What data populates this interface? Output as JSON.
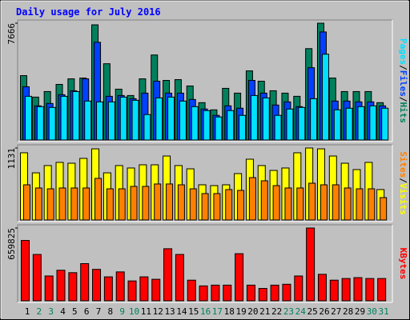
{
  "chart_data": [
    {
      "type": "bar",
      "title": "Daily usage for July 2016",
      "separator": "/",
      "ylim": [
        0,
        7666
      ],
      "yticks": [
        7666
      ],
      "series": [
        {
          "name": "Hits",
          "color": "#00805c",
          "values": [
            4225,
            2816,
            3180,
            3650,
            4015,
            4067,
            7560,
            5006,
            3337,
            2920,
            4015,
            5580,
            3911,
            3963,
            3546,
            2450,
            1980,
            3390,
            3076,
            4537,
            3859,
            3233,
            3076,
            2868,
            5997,
            7666,
            4067,
            3180,
            3180,
            3180,
            2450
          ]
        },
        {
          "name": "Files",
          "color": "#0040ff",
          "values": [
            3494,
            2242,
            2399,
            2972,
            3233,
            4015,
            6414,
            2868,
            2920,
            2712,
            3076,
            3859,
            3076,
            3076,
            2660,
            2034,
            1617,
            2242,
            2086,
            3911,
            3076,
            2295,
            2503,
            2190,
            4745,
            7092,
            2555,
            2555,
            2503,
            2503,
            2242
          ]
        },
        {
          "name": "Pages",
          "color": "#00e0ff",
          "values": [
            2868,
            2190,
            2138,
            2868,
            3181,
            2555,
            2503,
            2503,
            2816,
            2607,
            1669,
            2764,
            2816,
            2555,
            2190,
            1930,
            1512,
            1930,
            1617,
            2920,
            2764,
            1617,
            2034,
            2138,
            2712,
            5632,
            1982,
            2086,
            2190,
            2242,
            2086
          ]
        }
      ]
    },
    {
      "type": "bar",
      "separator": "/",
      "ylim": [
        0,
        1131
      ],
      "yticks": [
        1131
      ],
      "series": [
        {
          "name": "Visits",
          "color": "#ffff00",
          "values": [
            1056,
            741,
            855,
            905,
            892,
            968,
            1118,
            741,
            855,
            817,
            867,
            867,
            1005,
            855,
            804,
            553,
            540,
            553,
            729,
            955,
            855,
            779,
            817,
            1056,
            1131,
            1118,
            1005,
            892,
            792,
            905,
            478
          ]
        },
        {
          "name": "Sites",
          "color": "#ff8000",
          "values": [
            553,
            503,
            490,
            503,
            503,
            503,
            654,
            490,
            490,
            528,
            528,
            566,
            566,
            553,
            490,
            415,
            415,
            478,
            465,
            666,
            616,
            540,
            503,
            503,
            578,
            553,
            553,
            503,
            490,
            490,
            352
          ]
        }
      ]
    },
    {
      "type": "bar",
      "ylim": [
        0,
        659825
      ],
      "yticks": [
        659825
      ],
      "categories": [
        "1",
        "2",
        "3",
        "4",
        "5",
        "6",
        "7",
        "8",
        "9",
        "10",
        "11",
        "12",
        "13",
        "14",
        "15",
        "16",
        "17",
        "18",
        "19",
        "20",
        "21",
        "22",
        "23",
        "24",
        "25",
        "26",
        "27",
        "28",
        "29",
        "30",
        "31"
      ],
      "category_colors": [
        "#000000",
        "#00805c",
        "#00805c",
        "#000000",
        "#000000",
        "#000000",
        "#000000",
        "#000000",
        "#00805c",
        "#00805c",
        "#000000",
        "#000000",
        "#000000",
        "#000000",
        "#000000",
        "#00805c",
        "#00805c",
        "#000000",
        "#000000",
        "#000000",
        "#000000",
        "#000000",
        "#00805c",
        "#00805c",
        "#000000",
        "#000000",
        "#000000",
        "#000000",
        "#000000",
        "#00805c",
        "#00805c"
      ],
      "series": [
        {
          "name": "KBytes",
          "color": "#ff0000",
          "values": [
            547000,
            420000,
            225000,
            277000,
            255000,
            337000,
            285000,
            217000,
            262000,
            180000,
            217000,
            195000,
            472000,
            420000,
            187000,
            135000,
            142000,
            142000,
            427000,
            142000,
            112000,
            142000,
            150000,
            225000,
            659825,
            240000,
            187000,
            202000,
            210000,
            202000,
            202000
          ]
        }
      ]
    }
  ]
}
